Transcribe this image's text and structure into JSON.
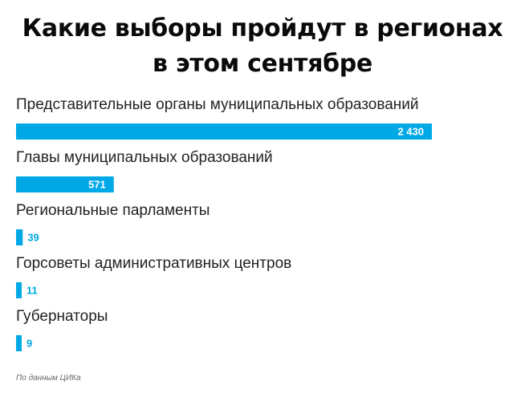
{
  "chart_data": {
    "type": "bar",
    "orientation": "horizontal",
    "title": [
      "Какие выборы пройдут в регионах",
      "в этом сентябре"
    ],
    "categories": [
      "Представительные органы муниципальных образований",
      "Главы муниципальных образований",
      "Региональные парламенты",
      "Горсоветы административных центров",
      "Губернаторы"
    ],
    "values": [
      2430,
      571,
      39,
      11,
      9
    ],
    "value_labels": [
      "2 430",
      "571",
      "39",
      "11",
      "9"
    ],
    "xlim": [
      0,
      2430
    ],
    "grid": false,
    "legend": "none",
    "bar_color": "#00a9e6",
    "source": "По данным ЦИКа"
  }
}
